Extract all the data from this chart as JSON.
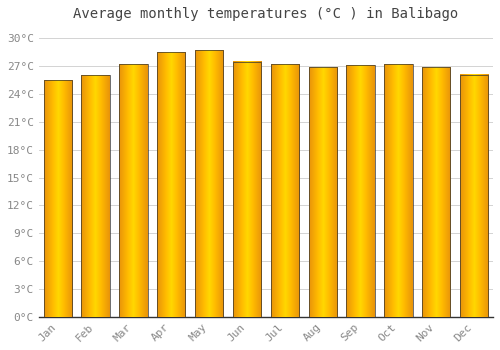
{
  "title": "Average monthly temperatures (°C ) in Balibago",
  "months": [
    "Jan",
    "Feb",
    "Mar",
    "Apr",
    "May",
    "Jun",
    "Jul",
    "Aug",
    "Sep",
    "Oct",
    "Nov",
    "Dec"
  ],
  "temperatures": [
    25.5,
    26.0,
    27.2,
    28.5,
    28.7,
    27.5,
    27.2,
    26.9,
    27.1,
    27.2,
    26.9,
    26.1
  ],
  "bar_color_center": "#FFD700",
  "bar_color_edge": "#E8930A",
  "bar_outline_color": "#333333",
  "background_color": "#FFFFFF",
  "grid_color": "#CCCCCC",
  "text_color": "#888888",
  "title_color": "#444444",
  "ylim": [
    0,
    31
  ],
  "yticks": [
    0,
    3,
    6,
    9,
    12,
    15,
    18,
    21,
    24,
    27,
    30
  ],
  "ytick_labels": [
    "0°C",
    "3°C",
    "6°C",
    "9°C",
    "12°C",
    "15°C",
    "18°C",
    "21°C",
    "24°C",
    "27°C",
    "30°C"
  ],
  "title_fontsize": 10,
  "tick_fontsize": 8,
  "bar_width": 0.75
}
